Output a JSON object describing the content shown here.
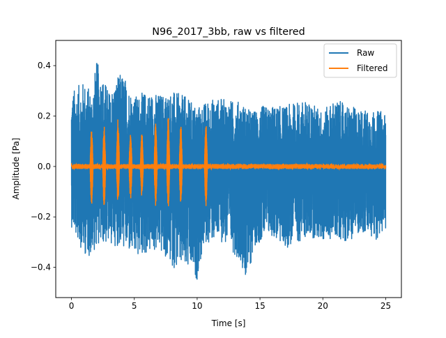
{
  "chart_data": {
    "type": "line",
    "title": "N96_2017_3bb, raw vs filtered",
    "xlabel": "Time [s]",
    "ylabel": "Amplitude [Pa]",
    "xlim": [
      -1.25,
      26.25
    ],
    "ylim": [
      -0.52,
      0.5
    ],
    "x_ticks": [
      {
        "value": 0,
        "label": "0"
      },
      {
        "value": 5,
        "label": "5"
      },
      {
        "value": 10,
        "label": "10"
      },
      {
        "value": 15,
        "label": "15"
      },
      {
        "value": 20,
        "label": "20"
      },
      {
        "value": 25,
        "label": "25"
      }
    ],
    "y_ticks": [
      {
        "value": -0.4,
        "label": "−0.4"
      },
      {
        "value": -0.2,
        "label": "−0.2"
      },
      {
        "value": 0.0,
        "label": "0.0"
      },
      {
        "value": 0.2,
        "label": "0.2"
      },
      {
        "value": 0.4,
        "label": "0.4"
      }
    ],
    "grid": false,
    "legend_position": "top-right",
    "series": [
      {
        "name": "Raw",
        "color": "#1f77b4",
        "t_start": 0,
        "t_end": 25,
        "envelope": {
          "time": [
            0,
            1,
            1.6,
            2,
            3,
            4,
            5,
            6,
            7,
            8,
            9,
            10,
            10.5,
            11,
            12,
            13,
            13.5,
            14,
            14.5,
            15,
            16,
            17,
            18,
            19,
            20,
            21,
            22,
            23,
            24,
            25
          ],
          "upper": [
            0.3,
            0.34,
            0.3,
            0.42,
            0.3,
            0.38,
            0.28,
            0.3,
            0.29,
            0.3,
            0.28,
            0.24,
            0.25,
            0.27,
            0.27,
            0.26,
            0.26,
            0.23,
            0.22,
            0.24,
            0.24,
            0.24,
            0.26,
            0.26,
            0.22,
            0.27,
            0.24,
            0.23,
            0.22,
            0.22
          ],
          "lower": [
            -0.24,
            -0.35,
            -0.36,
            -0.31,
            -0.31,
            -0.32,
            -0.37,
            -0.35,
            -0.34,
            -0.4,
            -0.42,
            -0.45,
            -0.33,
            -0.3,
            -0.3,
            -0.35,
            -0.38,
            -0.48,
            -0.32,
            -0.3,
            -0.28,
            -0.33,
            -0.3,
            -0.28,
            -0.3,
            -0.28,
            -0.3,
            -0.26,
            -0.3,
            -0.26
          ]
        }
      },
      {
        "name": "Filtered",
        "color": "#ff7f0e",
        "t_start": 0,
        "t_end": 25,
        "baseline_amplitude": 0.01,
        "bursts": [
          {
            "t": 1.6,
            "max": 0.15,
            "min": -0.16
          },
          {
            "t": 2.6,
            "max": 0.16,
            "min": -0.16
          },
          {
            "t": 3.7,
            "max": 0.19,
            "min": -0.15
          },
          {
            "t": 4.7,
            "max": 0.14,
            "min": -0.13
          },
          {
            "t": 5.6,
            "max": 0.14,
            "min": -0.12
          },
          {
            "t": 6.7,
            "max": 0.18,
            "min": -0.16
          },
          {
            "t": 7.7,
            "max": 0.2,
            "min": -0.17
          },
          {
            "t": 8.7,
            "max": 0.17,
            "min": -0.15
          },
          {
            "t": 10.7,
            "max": 0.17,
            "min": -0.16
          }
        ]
      }
    ]
  }
}
